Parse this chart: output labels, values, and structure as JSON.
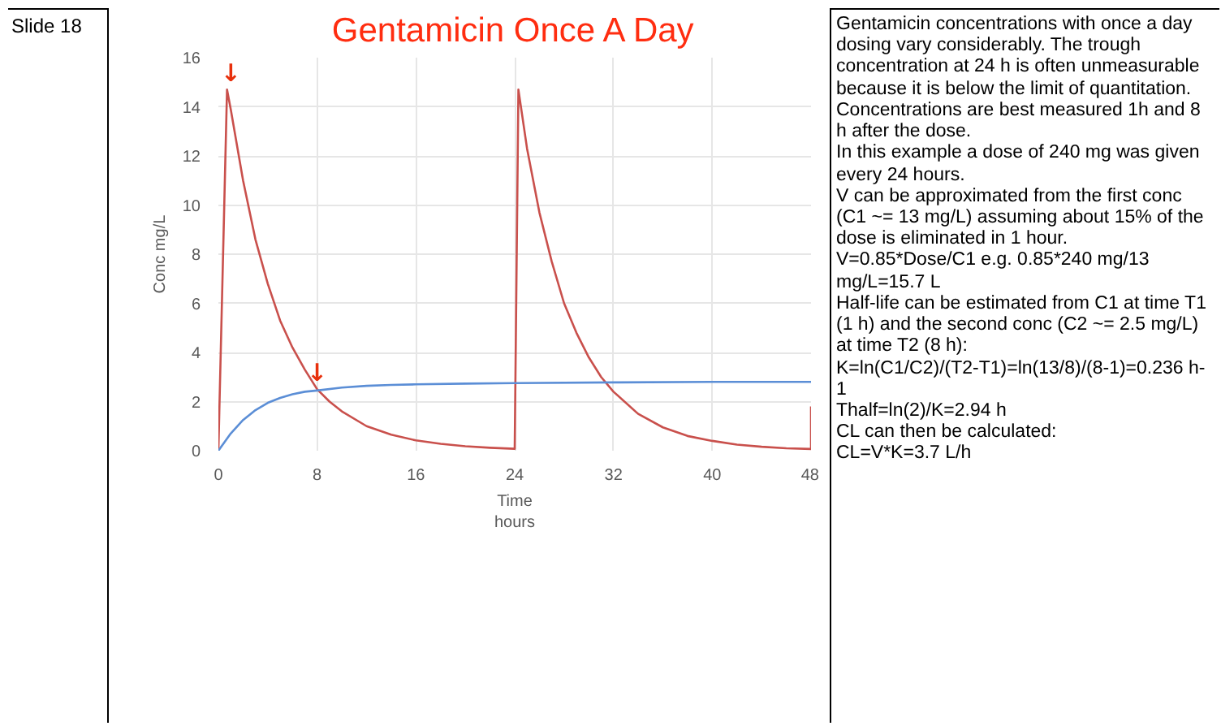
{
  "chart_data": {
    "type": "line",
    "title": "Gentamicin Once A Day",
    "xlabel": "Time\nhours",
    "ylabel": "Conc mg/L",
    "xlim": [
      0,
      48
    ],
    "ylim": [
      0,
      16
    ],
    "xticks": [
      0,
      8,
      16,
      24,
      32,
      40,
      48
    ],
    "yticks": [
      0,
      2,
      4,
      6,
      8,
      10,
      12,
      14,
      16
    ],
    "grid": true,
    "marker": "none",
    "line_style": "solid",
    "series": [
      {
        "color": "#c9504c",
        "x": [
          0,
          0.7,
          1,
          2,
          3,
          4,
          5,
          6,
          7,
          8,
          9,
          10,
          12,
          14,
          16,
          18,
          20,
          22,
          24,
          24.3,
          25,
          26,
          27,
          28,
          29,
          30,
          31,
          32,
          34,
          36,
          38,
          40,
          42,
          44,
          46,
          48,
          48
        ],
        "values": [
          0,
          14.7,
          13.9,
          11.0,
          8.6,
          6.8,
          5.3,
          4.2,
          3.3,
          2.5,
          2.0,
          1.6,
          1.0,
          0.65,
          0.42,
          0.28,
          0.18,
          0.12,
          0.08,
          14.7,
          12.3,
          9.7,
          7.7,
          6.0,
          4.8,
          3.8,
          3.0,
          2.4,
          1.5,
          0.95,
          0.6,
          0.4,
          0.25,
          0.16,
          0.1,
          0.07,
          1.8
        ]
      },
      {
        "color": "#5b8ed6",
        "x": [
          0,
          1,
          2,
          3,
          4,
          5,
          6,
          7,
          8,
          10,
          12,
          14,
          16,
          20,
          24,
          32,
          40,
          48
        ],
        "values": [
          0,
          0.7,
          1.25,
          1.65,
          1.95,
          2.15,
          2.3,
          2.4,
          2.45,
          2.57,
          2.64,
          2.68,
          2.7,
          2.73,
          2.75,
          2.78,
          2.8,
          2.8
        ]
      }
    ],
    "annotations": [
      {
        "text": "↓",
        "x": 1,
        "y": 14.7
      },
      {
        "text": "↓",
        "x": 8,
        "y": 2.5
      },
      "Slide 18",
      "Gentamicin concentrations with once a day dosing vary considerably. The trough concentration at 24 h is often unmeasurable because it is below the limit of quantitation. Concentrations are best measured 1h and 8 h after the dose.\nIn this example a dose of 240 mg was given every 24 hours.\nV can be approximated from the first conc (C1 ~= 13 mg/L) assuming about 15% of the dose is eliminated in 1 hour.\nV=0.85*Dose/C1  e.g. 0.85*240 mg/13 mg/L=15.7 L\nHalf-life can be estimated from C1 at time T1 (1 h) and the second conc (C2 ~= 2.5 mg/L) at time T2 (8 h):\nK=ln(C1/C2)/(T2-T1)=ln(13/8)/(8-1)=0.236 h-1\nThalf=ln(2)/K=2.94 h\nCL can then be calculated:\nCL=V*K=3.7 L/h"
    ]
  }
}
